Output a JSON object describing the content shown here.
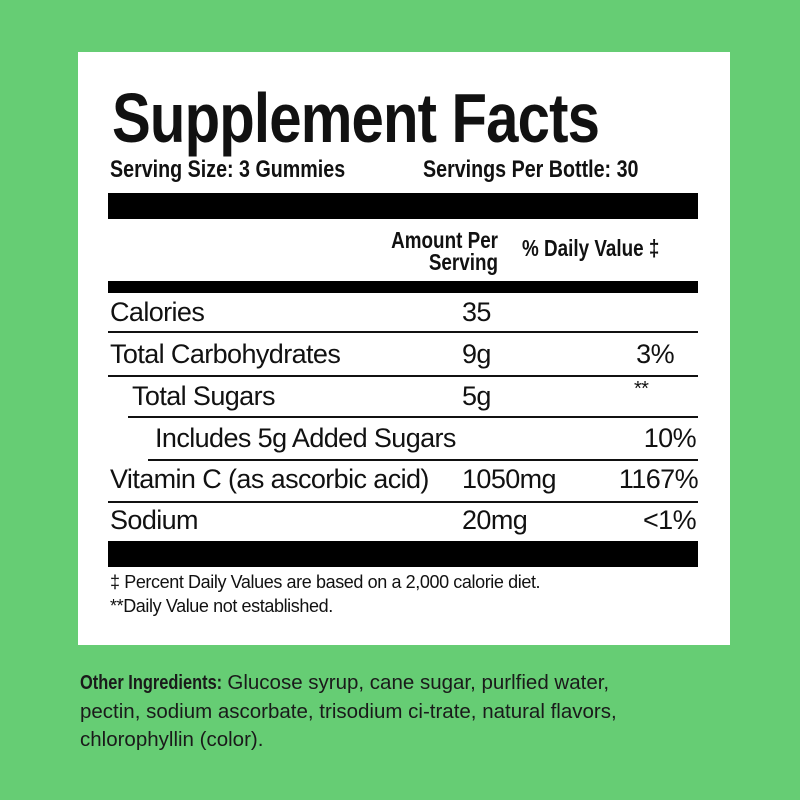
{
  "label": {
    "title": "Supplement Facts",
    "serving_size": "Serving Size: 3 Gummies",
    "servings_per_container": "Servings Per Bottle: 30",
    "header": {
      "amount_line1": "Amount Per",
      "amount_line2": "Serving",
      "daily_value": "% Daily Value ‡"
    },
    "rows": [
      {
        "name": "Calories",
        "amount": "35",
        "dv": ""
      },
      {
        "name": "Total Carbohydrates",
        "amount": "9g",
        "dv": "3%"
      },
      {
        "name": "Total Sugars",
        "amount": "5g",
        "dv": "**"
      },
      {
        "name": "Includes 5g Added Sugars",
        "amount": "",
        "dv": "10%"
      },
      {
        "name": "Vitamin C (as ascorbic acid)",
        "amount": "1050mg",
        "dv": "1167%"
      },
      {
        "name": "Sodium",
        "amount": "20mg",
        "dv": "<1%"
      }
    ],
    "footnotes": [
      "‡ Percent Daily Values are based on a 2,000 calorie diet.",
      "**Daily Value not established."
    ]
  },
  "ingredients": {
    "label": "Other Ingredients:",
    "line1": "Glucose syrup, cane sugar, purlfied water,",
    "line2": "pectin, sodium ascorbate, trisodium ci-trate, natural flavors,",
    "line3": "chlorophyllin (color)."
  },
  "colors": {
    "background": "#66cd74",
    "panel": "#ffffff",
    "text": "#111111"
  }
}
